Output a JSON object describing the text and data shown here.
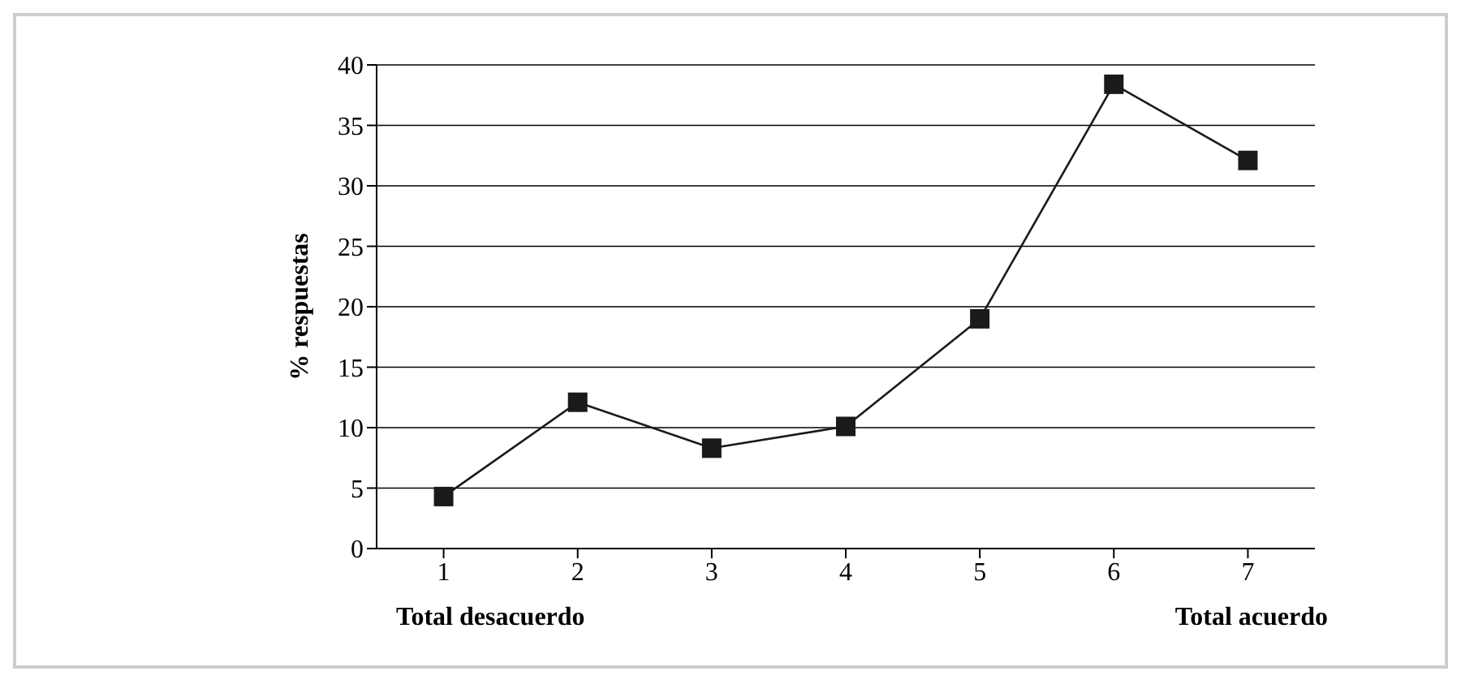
{
  "chart_data": {
    "type": "line",
    "ylabel": "% respuestas",
    "categories": [
      "1",
      "2",
      "3",
      "4",
      "5",
      "6",
      "7"
    ],
    "series": [
      {
        "color": "#1a1a1a",
        "values": [
          4.3,
          12.1,
          8.3,
          10.1,
          19.0,
          38.4,
          32.1
        ]
      }
    ],
    "ylim": [
      0,
      40
    ],
    "yticks": [
      0,
      5,
      10,
      15,
      20,
      25,
      30,
      35,
      40
    ],
    "grid": "y",
    "marker": "square",
    "annotations": [
      "Total desacuerdo",
      "Total acuerdo"
    ]
  }
}
